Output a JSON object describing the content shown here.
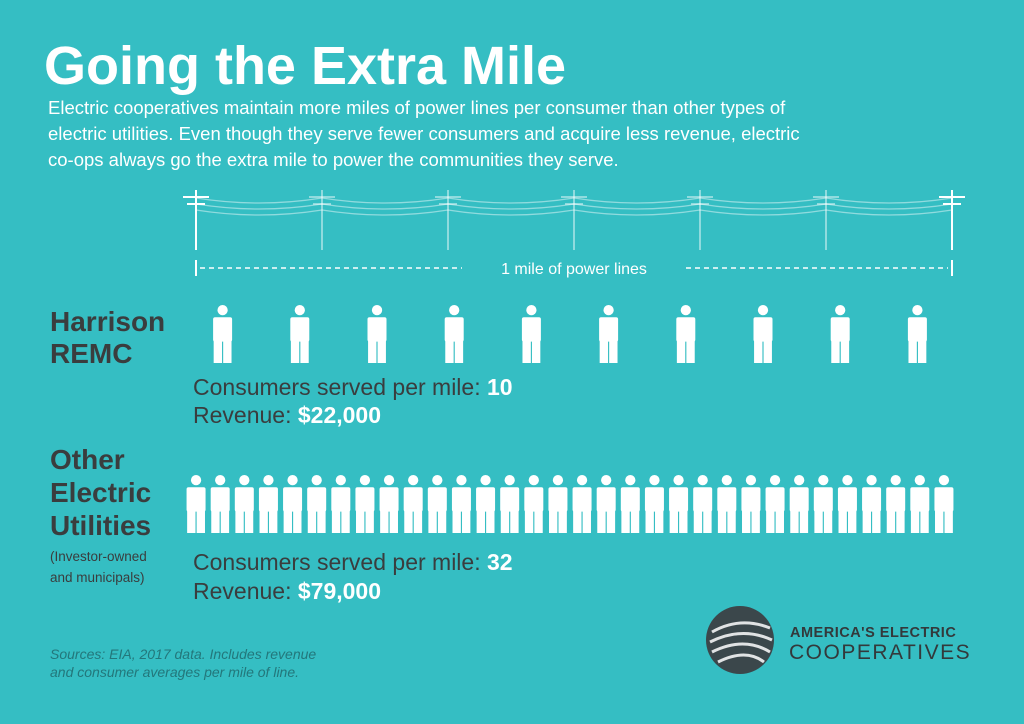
{
  "header": {
    "title": "Going the Extra Mile",
    "description_lines": [
      "Electric cooperatives maintain more miles of power lines per consumer than other types of",
      "electric utilities. Even though they serve fewer consumers and acquire less revenue, electric",
      "co-ops always go the extra mile to power the communities they serve."
    ]
  },
  "scale": {
    "label": "1 mile of power lines"
  },
  "groups": [
    {
      "name_lines": [
        "Harrison",
        "REMC"
      ],
      "consumers_label": "Consumers served per mile:",
      "consumers": 10,
      "revenue_label": "Revenue:",
      "revenue": "$22,000"
    },
    {
      "name_lines": [
        "Other",
        "Electric",
        "Utilities"
      ],
      "note_lines": [
        "(Investor-owned",
        "and municipals)"
      ],
      "consumers_label": "Consumers served per mile:",
      "consumers": 32,
      "revenue_label": "Revenue:",
      "revenue": "$79,000"
    }
  ],
  "footer": {
    "sources_lines": [
      "Sources: EIA, 2017 data. Includes revenue",
      "and consumer averages per mile of line."
    ],
    "logo_lines": [
      "AMERICA'S ELECTRIC",
      "COOPERATIVES"
    ]
  }
}
